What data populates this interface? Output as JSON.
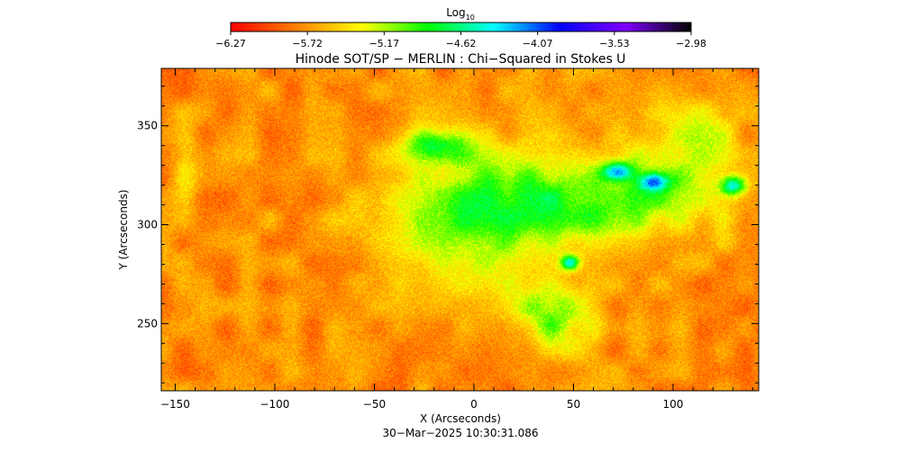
{
  "chart_data": {
    "type": "heatmap",
    "title": "Hinode SOT/SP − MERLIN : Chi−Squared in Stokes U",
    "xlabel": "X (Arcseconds)",
    "ylabel": "Y (Arcseconds)",
    "xlim": [
      -157,
      143
    ],
    "ylim": [
      216,
      379
    ],
    "xticks": [
      -150,
      -100,
      -50,
      0,
      50,
      100
    ],
    "yticks": [
      250,
      300,
      350
    ],
    "xtick_labels": [
      "−150",
      "−100",
      "−50",
      "0",
      "50",
      "100"
    ],
    "ytick_labels": [
      "250",
      "300",
      "350"
    ],
    "colorbar": {
      "label_main": "Log",
      "label_sub": "10",
      "range": [
        -6.27,
        -2.98
      ],
      "tick_labels": [
        "−6.27",
        "−5.72",
        "−5.17",
        "−4.62",
        "−4.07",
        "−3.53",
        "−2.98"
      ],
      "colors": [
        "#ff0000",
        "#ff8000",
        "#ffff00",
        "#00ff00",
        "#00ffff",
        "#0000ff",
        "#8000ff",
        "#000000"
      ]
    },
    "field": {
      "background_level": -5.75,
      "patches": [
        {
          "x": -5,
          "y": 305,
          "rx": 55,
          "ry": 45,
          "level": -5.1
        },
        {
          "x": 60,
          "y": 312,
          "rx": 75,
          "ry": 28,
          "level": -5.0
        },
        {
          "x": 72,
          "y": 327,
          "rx": 10,
          "ry": 6,
          "level": -4.55
        },
        {
          "x": 90,
          "y": 322,
          "rx": 10,
          "ry": 6,
          "level": -4.6
        },
        {
          "x": 130,
          "y": 320,
          "rx": 8,
          "ry": 6,
          "level": -4.6
        },
        {
          "x": 48,
          "y": 281,
          "rx": 6,
          "ry": 5,
          "level": -4.5
        },
        {
          "x": 40,
          "y": 255,
          "rx": 25,
          "ry": 22,
          "level": -5.05
        },
        {
          "x": -20,
          "y": 340,
          "rx": 20,
          "ry": 10,
          "level": -5.0
        },
        {
          "x": -145,
          "y": 330,
          "rx": 8,
          "ry": 25,
          "level": -5.4
        },
        {
          "x": 110,
          "y": 340,
          "rx": 30,
          "ry": 30,
          "level": -5.3
        }
      ]
    }
  },
  "footer": {
    "timestamp": "30−Mar−2025 10:30:31.086"
  }
}
